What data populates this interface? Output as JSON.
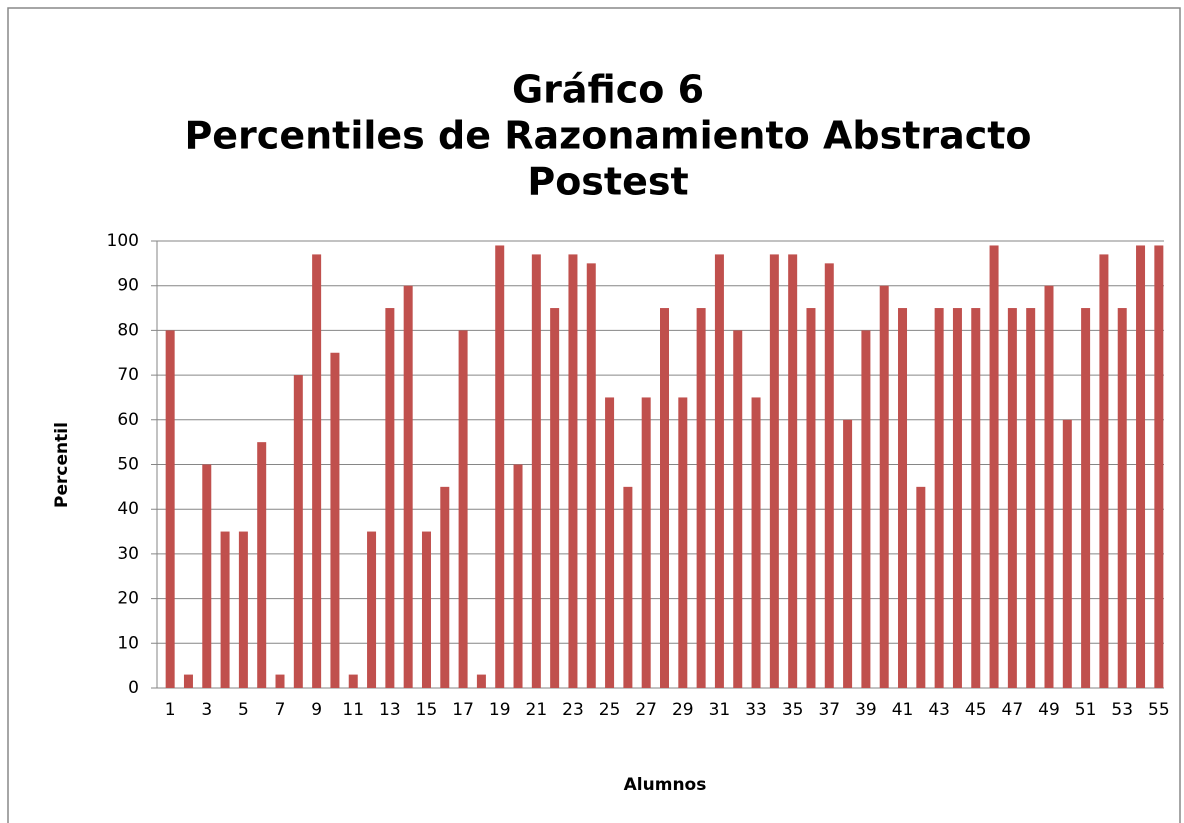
{
  "chart_data": {
    "type": "bar",
    "title": [
      "Gráfico 6",
      "Percentiles de Razonamiento Abstracto",
      "Postest"
    ],
    "x_label": "Alumnos",
    "y_label": "Percentil",
    "categories": [
      1,
      null,
      3,
      null,
      5,
      null,
      7,
      null,
      9,
      null,
      11,
      null,
      13,
      null,
      15,
      null,
      17,
      null,
      19,
      null,
      21,
      null,
      23,
      null,
      25,
      null,
      27,
      null,
      29,
      null,
      31,
      null,
      33,
      null,
      35,
      null,
      37,
      null,
      39,
      null,
      41,
      null,
      43,
      null,
      45,
      null,
      47,
      null,
      49,
      null,
      51,
      null,
      53,
      null,
      55
    ],
    "values": [
      80,
      3,
      50,
      35,
      35,
      55,
      3,
      70,
      97,
      75,
      3,
      35,
      85,
      90,
      35,
      45,
      80,
      3,
      99,
      50,
      97,
      85,
      97,
      95,
      65,
      45,
      65,
      85,
      65,
      85,
      97,
      80,
      65,
      97,
      97,
      85,
      95,
      60,
      80,
      90,
      85,
      45,
      85,
      85,
      85,
      99,
      85,
      85,
      90,
      60,
      85,
      97,
      85,
      99,
      99
    ],
    "color": "#c0504d",
    "ylim": [
      0,
      100
    ],
    "yticks": [
      0,
      10,
      20,
      30,
      40,
      50,
      60,
      70,
      80,
      90,
      100
    ],
    "grid": true
  }
}
